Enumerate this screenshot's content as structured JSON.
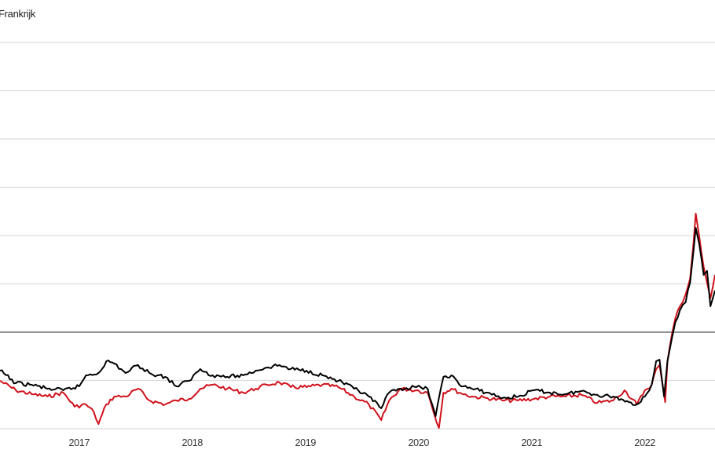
{
  "chart_data": {
    "type": "line",
    "title": "Frankrijk",
    "xlabel": "",
    "ylabel": "",
    "xlim": [
      2016.3,
      2022.62
    ],
    "ylim": [
      0,
      400
    ],
    "y_gridlines": [
      0,
      50,
      100,
      150,
      200,
      250,
      300,
      350,
      400
    ],
    "reference_line": 100,
    "grid": true,
    "x_ticks": [
      {
        "value": 2017.0,
        "label": "2017"
      },
      {
        "value": 2018.0,
        "label": "2018"
      },
      {
        "value": 2019.0,
        "label": "2019"
      },
      {
        "value": 2020.0,
        "label": "2020"
      },
      {
        "value": 2021.0,
        "label": "2021"
      },
      {
        "value": 2022.0,
        "label": "2022"
      }
    ],
    "series": [
      {
        "name": "series-red",
        "color": "#d0111b",
        "x": [
          2016.3,
          2016.44,
          2016.58,
          2016.72,
          2016.86,
          2016.96,
          2017.06,
          2017.13,
          2017.17,
          2017.24,
          2017.31,
          2017.41,
          2017.52,
          2017.62,
          2017.76,
          2017.86,
          2017.97,
          2018.07,
          2018.18,
          2018.31,
          2018.45,
          2018.56,
          2018.66,
          2018.77,
          2018.87,
          2019.01,
          2019.15,
          2019.29,
          2019.43,
          2019.56,
          2019.67,
          2019.74,
          2019.84,
          2019.98,
          2020.08,
          2020.18,
          2020.22,
          2020.29,
          2020.36,
          2020.47,
          2020.61,
          2020.74,
          2020.88,
          2021.02,
          2021.16,
          2021.3,
          2021.44,
          2021.58,
          2021.72,
          2021.82,
          2021.93,
          2022.0,
          2022.06,
          2022.1,
          2022.13,
          2022.18,
          2022.2,
          2022.24,
          2022.27,
          2022.31,
          2022.36,
          2022.4,
          2022.43,
          2022.45,
          2022.48,
          2022.52,
          2022.55,
          2022.58,
          2022.62
        ],
        "values": [
          49.6,
          39.8,
          35.8,
          33.3,
          37.4,
          22.8,
          25.2,
          17.1,
          4.9,
          25.2,
          33.3,
          33.3,
          41.5,
          29.3,
          25.2,
          29.3,
          30.9,
          41.5,
          45.5,
          41.5,
          37.4,
          41.5,
          45.5,
          48.0,
          43.1,
          43.1,
          45.5,
          43.1,
          33.3,
          25.2,
          8.9,
          29.3,
          41.5,
          39.8,
          37.4,
          0.8,
          37.4,
          41.5,
          37.4,
          33.3,
          31.7,
          29.3,
          29.3,
          30.9,
          33.3,
          33.3,
          35.0,
          26.8,
          29.3,
          39.8,
          25.2,
          39.8,
          45.5,
          61.8,
          65.9,
          27.6,
          69.9,
          98.4,
          114.6,
          126.8,
          139.0,
          155.3,
          191.9,
          222.8,
          200.0,
          167.5,
          151.2,
          135.0,
          159.3
        ]
      },
      {
        "name": "series-black",
        "color": "#000000",
        "x": [
          2016.3,
          2016.44,
          2016.58,
          2016.72,
          2016.86,
          2017.0,
          2017.06,
          2017.17,
          2017.24,
          2017.31,
          2017.41,
          2017.52,
          2017.62,
          2017.76,
          2017.86,
          2017.97,
          2018.07,
          2018.18,
          2018.31,
          2018.45,
          2018.56,
          2018.66,
          2018.77,
          2018.87,
          2019.01,
          2019.15,
          2019.29,
          2019.43,
          2019.56,
          2019.67,
          2019.74,
          2019.84,
          2019.98,
          2020.08,
          2020.15,
          2020.22,
          2020.29,
          2020.36,
          2020.47,
          2020.61,
          2020.74,
          2020.88,
          2021.02,
          2021.16,
          2021.3,
          2021.44,
          2021.58,
          2021.72,
          2021.86,
          2021.93,
          2022.0,
          2022.06,
          2022.1,
          2022.13,
          2022.17,
          2022.2,
          2022.24,
          2022.27,
          2022.31,
          2022.36,
          2022.4,
          2022.43,
          2022.45,
          2022.48,
          2022.52,
          2022.55,
          2022.58,
          2022.62
        ],
        "values": [
          60.2,
          47.2,
          45.5,
          41.5,
          39.8,
          43.9,
          55.3,
          57.7,
          69.9,
          67.5,
          57.7,
          65.9,
          57.7,
          53.7,
          43.9,
          49.6,
          61.8,
          55.3,
          53.7,
          55.3,
          60.2,
          63.4,
          65.9,
          61.8,
          60.2,
          55.3,
          49.6,
          41.5,
          33.3,
          21.1,
          37.4,
          41.5,
          43.1,
          41.5,
          13.0,
          53.7,
          55.3,
          45.5,
          41.5,
          37.4,
          31.7,
          33.3,
          39.8,
          37.4,
          35.8,
          39.0,
          35.0,
          33.3,
          27.6,
          25.2,
          33.3,
          45.5,
          69.9,
          71.5,
          33.3,
          69.9,
          94.3,
          110.6,
          122.8,
          130.9,
          151.2,
          183.7,
          208.1,
          191.9,
          159.3,
          163.4,
          126.8,
          143.1
        ]
      }
    ]
  }
}
